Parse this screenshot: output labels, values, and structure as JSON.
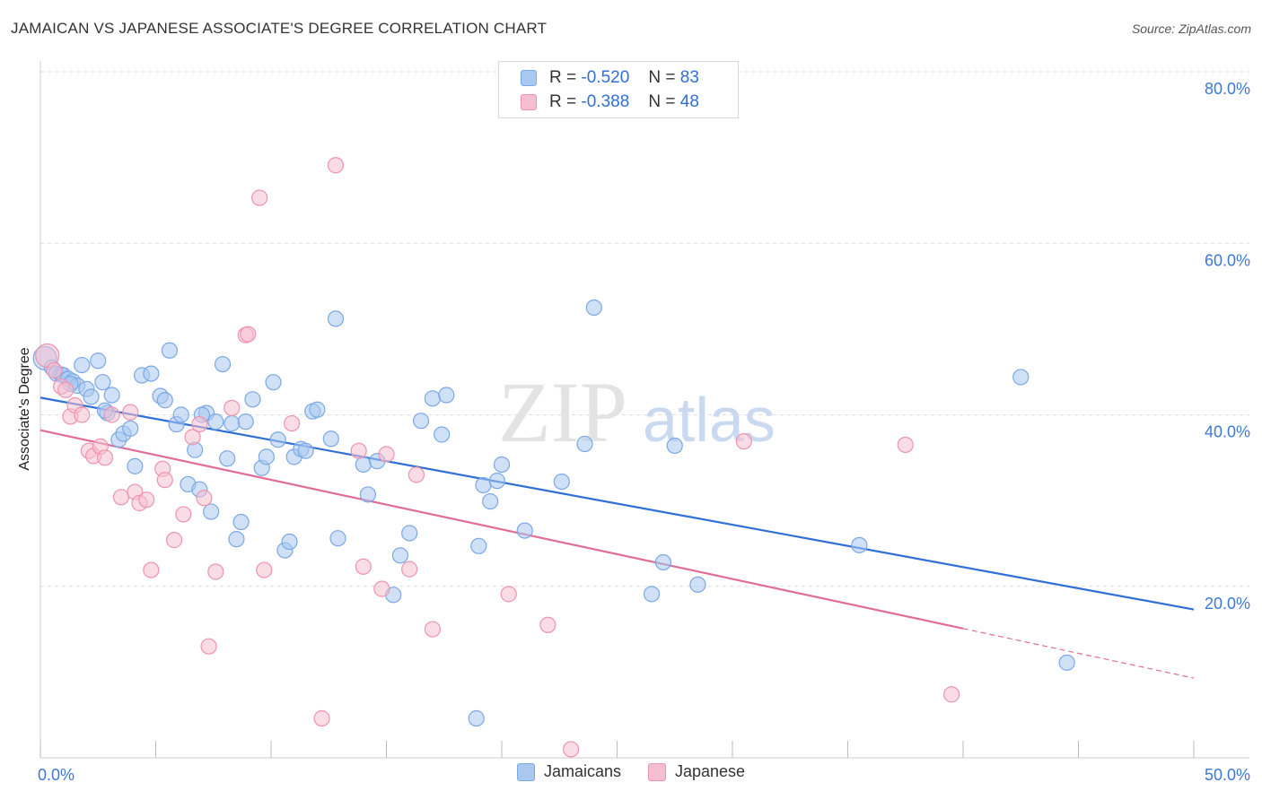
{
  "title": "JAMAICAN VS JAPANESE ASSOCIATE'S DEGREE CORRELATION CHART",
  "source": "Source: ZipAtlas.com",
  "watermark": {
    "zip": "ZIP",
    "atlas": "atlas"
  },
  "legend": {
    "rows": [
      {
        "r_label": "R =",
        "r_value": "-0.520",
        "n_label": "N =",
        "n_value": "83",
        "color": "#a9c8f0",
        "border": "#7aa8e6"
      },
      {
        "r_label": "R =",
        "r_value": "-0.388",
        "n_label": "N =",
        "n_value": "48",
        "color": "#f6bfd0",
        "border": "#ee93b0"
      }
    ]
  },
  "bottom_legend": [
    {
      "label": "Jamaicans",
      "color": "#a9c8f0",
      "border": "#7aa8e6"
    },
    {
      "label": "Japanese",
      "color": "#f6bfd0",
      "border": "#ee93b0"
    }
  ],
  "chart_data": {
    "type": "scatter",
    "title": "JAMAICAN VS JAPANESE ASSOCIATE'S DEGREE CORRELATION CHART",
    "xlabel": "",
    "ylabel": "Associate's Degree",
    "xlim": [
      0,
      50
    ],
    "ylim": [
      0,
      80
    ],
    "x_tick_labels": [
      {
        "value": 0,
        "label": "0.0%"
      },
      {
        "value": 50,
        "label": "50.0%"
      }
    ],
    "y_tick_labels": [
      {
        "value": 20,
        "label": "20.0%"
      },
      {
        "value": 40,
        "label": "40.0%"
      },
      {
        "value": 60,
        "label": "60.0%"
      },
      {
        "value": 80,
        "label": "80.0%"
      }
    ],
    "grid": true,
    "series": [
      {
        "name": "Jamaicans",
        "color": "#a9c8f0",
        "stroke": "#7aa8e6",
        "line_color": "#2f6fd6",
        "trend": {
          "x0": 0,
          "y0": 42.0,
          "x1": 50,
          "y1": 17.3,
          "solid_until": 50
        },
        "points": [
          [
            0.2,
            46.6
          ],
          [
            0.5,
            45.5
          ],
          [
            0.7,
            44.8
          ],
          [
            0.9,
            44.7
          ],
          [
            1.0,
            44.6
          ],
          [
            1.2,
            44.2
          ],
          [
            1.4,
            43.9
          ],
          [
            1.6,
            43.4
          ],
          [
            1.8,
            45.8
          ],
          [
            2.0,
            43.0
          ],
          [
            2.2,
            42.1
          ],
          [
            2.5,
            46.3
          ],
          [
            2.7,
            43.8
          ],
          [
            2.9,
            40.2
          ],
          [
            3.1,
            42.3
          ],
          [
            3.4,
            37.1
          ],
          [
            3.6,
            37.8
          ],
          [
            3.9,
            38.4
          ],
          [
            4.1,
            34.0
          ],
          [
            4.4,
            44.6
          ],
          [
            4.8,
            44.8
          ],
          [
            5.2,
            42.2
          ],
          [
            5.4,
            41.7
          ],
          [
            5.6,
            47.5
          ],
          [
            5.9,
            38.9
          ],
          [
            6.1,
            40.0
          ],
          [
            6.4,
            31.9
          ],
          [
            6.7,
            35.9
          ],
          [
            6.9,
            31.3
          ],
          [
            7.2,
            40.2
          ],
          [
            7.4,
            28.7
          ],
          [
            7.6,
            39.2
          ],
          [
            7.9,
            45.9
          ],
          [
            8.1,
            34.9
          ],
          [
            8.3,
            39.0
          ],
          [
            8.5,
            25.5
          ],
          [
            8.7,
            27.5
          ],
          [
            8.9,
            39.2
          ],
          [
            9.2,
            41.8
          ],
          [
            9.6,
            33.8
          ],
          [
            9.8,
            35.1
          ],
          [
            10.1,
            43.8
          ],
          [
            10.3,
            37.1
          ],
          [
            10.6,
            24.2
          ],
          [
            10.8,
            25.2
          ],
          [
            11.0,
            35.1
          ],
          [
            11.3,
            36.0
          ],
          [
            11.5,
            35.8
          ],
          [
            11.8,
            40.4
          ],
          [
            12.0,
            40.6
          ],
          [
            12.6,
            37.2
          ],
          [
            12.9,
            25.6
          ],
          [
            12.8,
            51.2
          ],
          [
            14.0,
            34.2
          ],
          [
            14.2,
            30.7
          ],
          [
            14.6,
            34.6
          ],
          [
            15.3,
            19.0
          ],
          [
            15.6,
            23.6
          ],
          [
            16.0,
            26.2
          ],
          [
            16.5,
            39.3
          ],
          [
            17.0,
            41.9
          ],
          [
            17.4,
            37.7
          ],
          [
            17.6,
            42.3
          ],
          [
            18.9,
            4.6
          ],
          [
            19.0,
            24.7
          ],
          [
            19.2,
            31.8
          ],
          [
            19.5,
            29.9
          ],
          [
            19.8,
            32.3
          ],
          [
            20.0,
            34.2
          ],
          [
            21.0,
            26.5
          ],
          [
            22.6,
            32.2
          ],
          [
            23.6,
            36.6
          ],
          [
            24.0,
            52.5
          ],
          [
            26.5,
            19.1
          ],
          [
            27.0,
            22.8
          ],
          [
            27.5,
            36.4
          ],
          [
            28.5,
            20.2
          ],
          [
            35.5,
            24.8
          ],
          [
            42.5,
            44.4
          ],
          [
            44.5,
            11.1
          ],
          [
            7.0,
            40.0
          ],
          [
            2.8,
            40.5
          ],
          [
            1.3,
            43.6
          ]
        ]
      },
      {
        "name": "Japanese",
        "color": "#f6bfd0",
        "stroke": "#ee93b0",
        "line_color": "#e06d97",
        "trend": {
          "x0": 0,
          "y0": 38.2,
          "x1": 50,
          "y1": 9.3,
          "solid_until": 40.0
        },
        "points": [
          [
            0.3,
            46.9
          ],
          [
            0.6,
            45.2
          ],
          [
            0.9,
            43.3
          ],
          [
            1.1,
            42.9
          ],
          [
            1.3,
            39.8
          ],
          [
            1.5,
            41.1
          ],
          [
            1.8,
            40.0
          ],
          [
            2.1,
            35.8
          ],
          [
            2.3,
            35.2
          ],
          [
            2.6,
            36.3
          ],
          [
            2.8,
            35.0
          ],
          [
            3.1,
            40.0
          ],
          [
            3.5,
            30.4
          ],
          [
            3.9,
            40.3
          ],
          [
            4.1,
            31.0
          ],
          [
            4.3,
            29.7
          ],
          [
            4.6,
            30.1
          ],
          [
            4.8,
            21.9
          ],
          [
            5.3,
            33.7
          ],
          [
            5.4,
            32.4
          ],
          [
            5.8,
            25.4
          ],
          [
            6.2,
            28.4
          ],
          [
            6.6,
            37.4
          ],
          [
            6.9,
            38.9
          ],
          [
            7.1,
            30.3
          ],
          [
            7.3,
            13.0
          ],
          [
            7.6,
            21.7
          ],
          [
            8.3,
            40.8
          ],
          [
            8.9,
            49.3
          ],
          [
            9.0,
            49.4
          ],
          [
            9.5,
            65.3
          ],
          [
            9.7,
            21.9
          ],
          [
            10.9,
            39.0
          ],
          [
            12.2,
            4.6
          ],
          [
            12.8,
            69.1
          ],
          [
            13.8,
            35.8
          ],
          [
            14.0,
            22.3
          ],
          [
            14.8,
            19.7
          ],
          [
            15.0,
            35.4
          ],
          [
            16.0,
            22.0
          ],
          [
            16.3,
            33.0
          ],
          [
            17.0,
            15.0
          ],
          [
            20.3,
            19.1
          ],
          [
            22.0,
            15.5
          ],
          [
            23.0,
            1.0
          ],
          [
            30.5,
            36.9
          ],
          [
            37.5,
            36.5
          ],
          [
            39.5,
            7.4
          ]
        ]
      }
    ]
  }
}
